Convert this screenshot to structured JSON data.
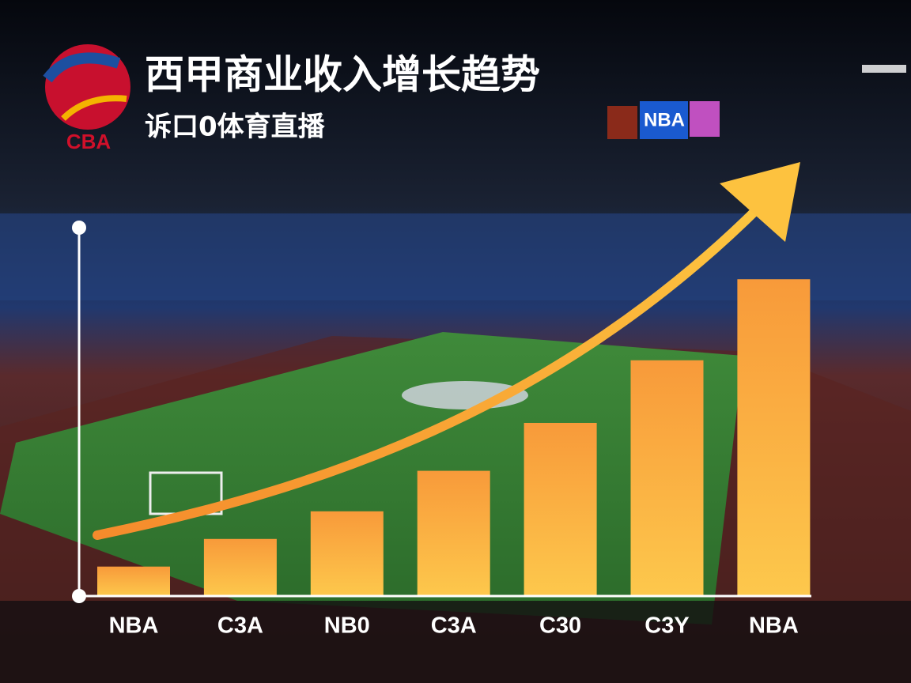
{
  "header": {
    "logo": "CBA",
    "title": "西甲商业收入增长趋势",
    "subtitle": "诉口0体育直播",
    "sign": "NBA"
  },
  "chart_data": {
    "type": "bar",
    "categories": [
      "NBA",
      "C3A",
      "NB0",
      "C3A",
      "C30",
      "C3Y",
      "NBA"
    ],
    "values": [
      8,
      15.5,
      23,
      34,
      47,
      64,
      86
    ],
    "color": "#f9a83c",
    "ylim": [
      0,
      100
    ]
  }
}
